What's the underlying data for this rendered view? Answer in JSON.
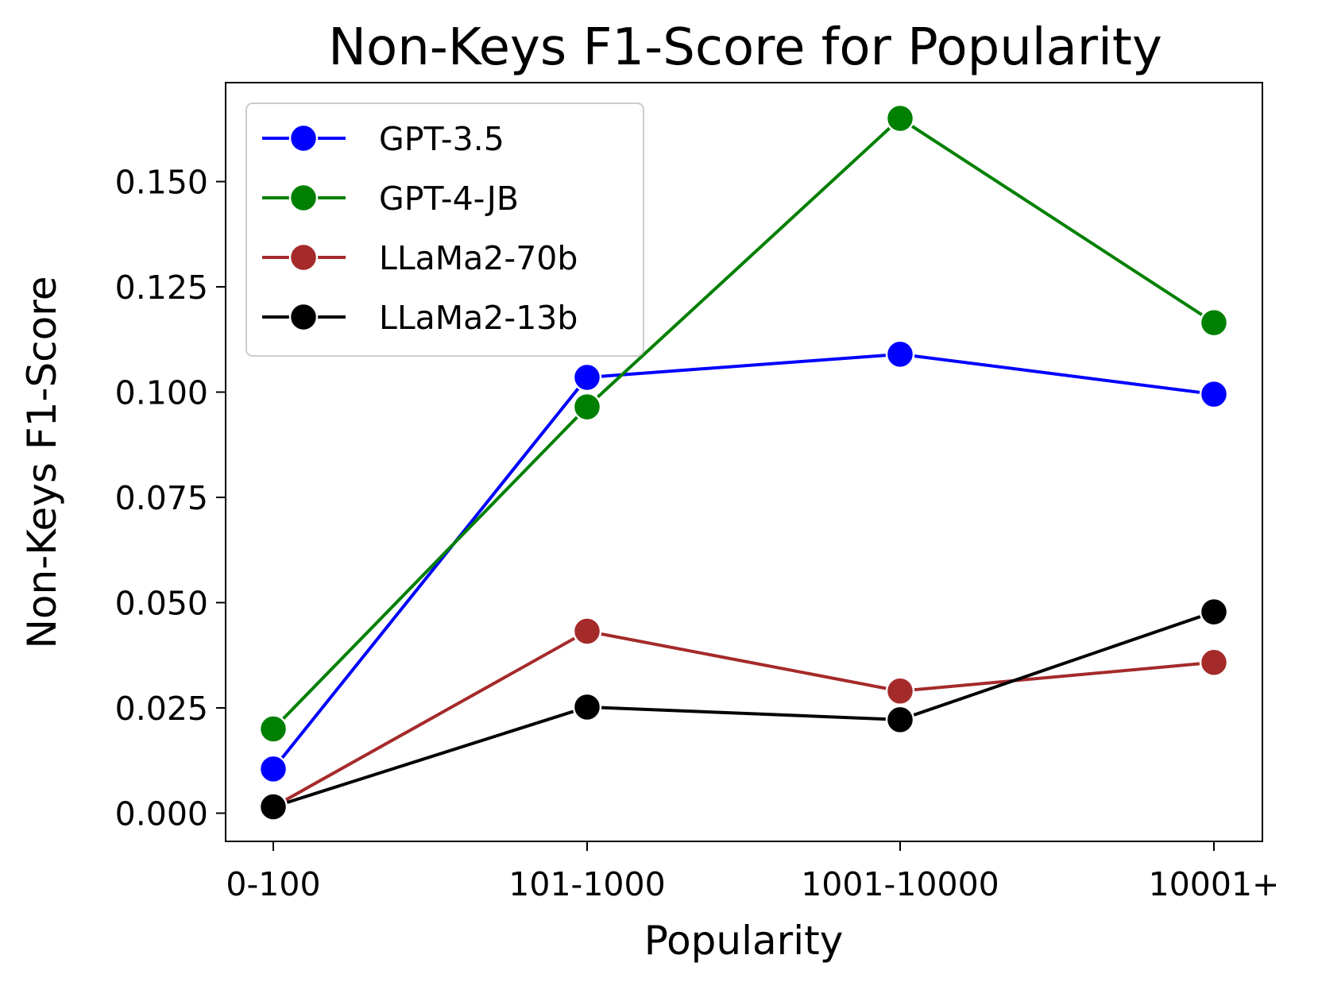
{
  "chart_data": {
    "type": "line",
    "title": "Non-Keys F1-Score for Popularity",
    "xlabel": "Popularity",
    "ylabel": "Non-Keys F1-Score",
    "categories": [
      "0-100",
      "101-1000",
      "1001-10000",
      "10001+"
    ],
    "ylim": [
      -0.0067,
      0.1735
    ],
    "yticks": [
      "0.000",
      "0.025",
      "0.050",
      "0.075",
      "0.100",
      "0.125",
      "0.150"
    ],
    "grid": false,
    "legend_position": "top-left",
    "series": [
      {
        "name": "GPT-3.5",
        "color": "#0000ff",
        "values": [
          0.0105,
          0.1035,
          0.109,
          0.0995
        ]
      },
      {
        "name": "GPT-4-JB",
        "color": "#008000",
        "values": [
          0.02,
          0.0965,
          0.165,
          0.1165
        ]
      },
      {
        "name": "LLaMa2-70b",
        "color": "#a52a2a",
        "values": [
          0.0015,
          0.0432,
          0.029,
          0.0358
        ]
      },
      {
        "name": "LLaMa2-13b",
        "color": "#000000",
        "values": [
          0.0015,
          0.0252,
          0.0222,
          0.0478
        ]
      }
    ]
  }
}
